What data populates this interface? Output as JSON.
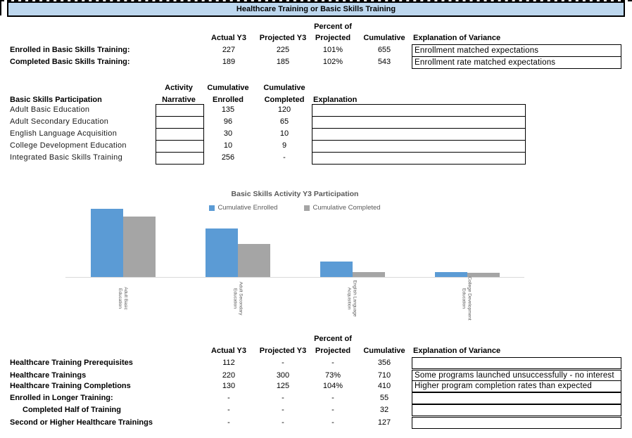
{
  "title": "Healthcare Training or Basic Skills Training",
  "colors": {
    "title_bg": "#BDD7EE",
    "bar_blue": "#5B9BD5",
    "bar_gray": "#A5A5A5",
    "chart_text": "#595959",
    "axis_line": "#D9D9D9"
  },
  "col_headers": {
    "percent_of": "Percent of",
    "actual": "Actual Y3",
    "projected": "Projected Y3",
    "percent": "Projected",
    "cumulative": "Cumulative",
    "explanation": "Explanation of Variance"
  },
  "top_table": {
    "rows": [
      {
        "label": "Enrolled in Basic Skills Training:",
        "actual": "227",
        "projected": "225",
        "percent": "101%",
        "cumulative": "655",
        "explanation": "Enrollment matched expectations"
      },
      {
        "label": "Completed Basic Skills Training:",
        "actual": "189",
        "projected": "185",
        "percent": "102%",
        "cumulative": "543",
        "explanation": "Enrollment rate matched expectations"
      }
    ]
  },
  "participation_table": {
    "title": "Basic Skills Participation",
    "headers": {
      "activity_line1": "Activity",
      "activity_line2": "Narrative",
      "enrolled_line1": "Cumulative",
      "enrolled_line2": "Enrolled",
      "completed_line1": "Cumulative",
      "completed_line2": "Completed",
      "explanation": "Explanation"
    },
    "rows": [
      {
        "label": "Adult Basic Education",
        "narrative": "",
        "enrolled": "135",
        "completed": "120",
        "explanation": ""
      },
      {
        "label": "Adult Secondary Education",
        "narrative": "",
        "enrolled": "96",
        "completed": "65",
        "explanation": ""
      },
      {
        "label": "English Language Acquisition",
        "narrative": "",
        "enrolled": "30",
        "completed": "10",
        "explanation": ""
      },
      {
        "label": "College Development Education",
        "narrative": "",
        "enrolled": "10",
        "completed": "9",
        "explanation": ""
      },
      {
        "label": "Integrated Basic Skills Training",
        "narrative": "",
        "enrolled": "256",
        "completed": "-",
        "explanation": ""
      }
    ]
  },
  "chart_data": {
    "type": "bar",
    "title": "Basic Skills Activity Y3 Participation",
    "categories": [
      "Adult Basic Education",
      "Adult Secondary Education",
      "English Language Acquisition",
      "College Development Education"
    ],
    "category_label_lines": [
      [
        "Adult Basic",
        "Education"
      ],
      [
        "Adult Secondary",
        "Education"
      ],
      [
        "English Language",
        "Acquisition"
      ],
      [
        "College Development",
        "Education"
      ]
    ],
    "series": [
      {
        "name": "Cumulative Enrolled",
        "color": "#5B9BD5",
        "values": [
          135,
          96,
          30,
          10
        ]
      },
      {
        "name": "Cumulative Completed",
        "color": "#A5A5A5",
        "values": [
          120,
          65,
          10,
          9
        ]
      }
    ],
    "xlabel": "",
    "ylabel": "",
    "ylim": [
      0,
      140
    ],
    "grid": false,
    "y_axis_labels_visible": false,
    "legend_position": "top-center",
    "category_label_rotation_deg": 90
  },
  "bottom_table": {
    "rows": [
      {
        "label": "Healthcare Training Prerequisites",
        "indent": false,
        "actual": "112",
        "projected": "-",
        "percent": "-",
        "cumulative": "356",
        "explanation": ""
      },
      {
        "label": "Healthcare Trainings",
        "indent": false,
        "actual": "220",
        "projected": "300",
        "percent": "73%",
        "cumulative": "710",
        "explanation": "Some programs launched unsuccessfully - no interest"
      },
      {
        "label": "Healthcare Training Completions",
        "indent": false,
        "actual": "130",
        "projected": "125",
        "percent": "104%",
        "cumulative": "410",
        "explanation": "Higher program completion rates than expected"
      },
      {
        "label": "Enrolled in Longer Training:",
        "indent": false,
        "actual": "-",
        "projected": "-",
        "percent": "-",
        "cumulative": "55",
        "explanation": ""
      },
      {
        "label": "Completed Half of Training",
        "indent": true,
        "actual": "-",
        "projected": "-",
        "percent": "-",
        "cumulative": "32",
        "explanation": ""
      },
      {
        "label": "Second or Higher Healthcare Trainings",
        "indent": false,
        "actual": "-",
        "projected": "-",
        "percent": "-",
        "cumulative": "127",
        "explanation": ""
      }
    ]
  }
}
